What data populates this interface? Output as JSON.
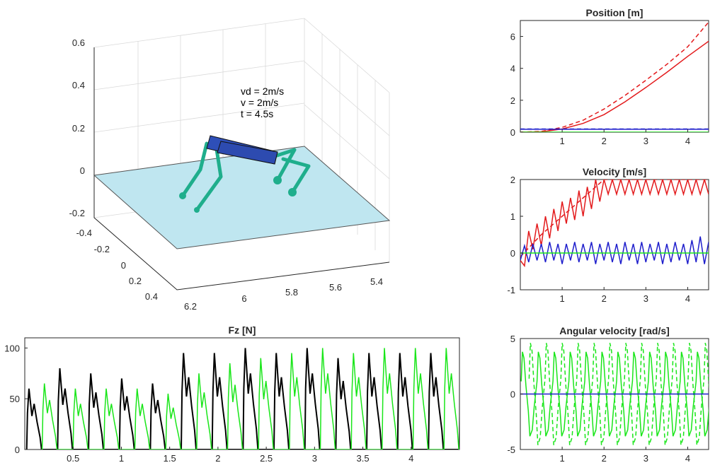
{
  "colors": {
    "red": "#e31a1c",
    "blue": "#1f1fcc",
    "green": "#19e619",
    "black": "#000000",
    "floor": "#bfe6f0",
    "body": "#2e4fb8",
    "legs": "#1fae8c"
  },
  "chart_data": [
    {
      "id": "scene3d",
      "type": "other",
      "title": "",
      "annotations": [
        "vd = 2m/s",
        "v = 2m/s",
        "t = 4.5s"
      ],
      "z_ticks": [
        "0.6",
        "0.4",
        "0.2",
        "0",
        "-0.2"
      ],
      "y_ticks": [
        "-0.4",
        "-0.2",
        "0",
        "0.2",
        "0.4"
      ],
      "x_ticks": [
        "6.2",
        "6",
        "5.8",
        "5.6",
        "5.4"
      ]
    },
    {
      "id": "position",
      "type": "line",
      "title": "Position [m]",
      "xlim": [
        0,
        4.5
      ],
      "ylim": [
        0,
        7
      ],
      "x_ticks": [
        "1",
        "2",
        "3",
        "4"
      ],
      "y_ticks": [
        "0",
        "2",
        "4",
        "6"
      ],
      "series": [
        {
          "style": "dashed",
          "color": "red",
          "x": [
            0,
            0.5,
            1,
            1.5,
            2,
            2.5,
            3,
            3.5,
            4,
            4.5
          ],
          "y": [
            0,
            0.05,
            0.3,
            0.75,
            1.45,
            2.3,
            3.25,
            4.25,
            5.35,
            6.9
          ]
        },
        {
          "style": "solid",
          "color": "red",
          "x": [
            0,
            0.5,
            1,
            1.5,
            2,
            2.5,
            3,
            3.5,
            4,
            4.5
          ],
          "y": [
            0,
            0.02,
            0.2,
            0.55,
            1.1,
            1.9,
            2.8,
            3.75,
            4.75,
            5.7
          ]
        },
        {
          "style": "solid",
          "color": "blue",
          "x": [
            0,
            4.5
          ],
          "y": [
            0.18,
            0.18
          ]
        },
        {
          "style": "dashed",
          "color": "blue",
          "x": [
            0,
            4.5
          ],
          "y": [
            0.2,
            0.2
          ]
        },
        {
          "style": "solid",
          "color": "green",
          "x": [
            0,
            4.5
          ],
          "y": [
            0,
            0
          ]
        }
      ]
    },
    {
      "id": "velocity",
      "type": "line",
      "title": "Velocity [m/s]",
      "xlim": [
        0,
        4.5
      ],
      "ylim": [
        -1,
        2
      ],
      "x_ticks": [
        "1",
        "2",
        "3",
        "4"
      ],
      "y_ticks": [
        "-1",
        "0",
        "1",
        "2"
      ],
      "series": [
        {
          "style": "dashed",
          "color": "red",
          "x": [
            0,
            0.5,
            1,
            1.5,
            2,
            4.5
          ],
          "y": [
            -0.1,
            0.5,
            1.0,
            1.5,
            2.0,
            2.0
          ]
        },
        {
          "style": "solid",
          "color": "red",
          "x": [
            0,
            0.1,
            0.2,
            0.3,
            0.4,
            0.5,
            0.6,
            0.7,
            0.8,
            0.9,
            1.0,
            1.1,
            1.2,
            1.3,
            1.4,
            1.5,
            1.6,
            1.7,
            1.8,
            1.9,
            2.0,
            2.1,
            2.2,
            2.3,
            2.4,
            2.5,
            2.6,
            2.7,
            2.8,
            2.9,
            3.0,
            3.1,
            3.2,
            3.3,
            3.4,
            3.5,
            3.6,
            3.7,
            3.8,
            3.9,
            4.0,
            4.1,
            4.2,
            4.3,
            4.4,
            4.5
          ],
          "y": [
            -0.2,
            -0.35,
            0.6,
            0.1,
            0.8,
            0.2,
            1.0,
            0.4,
            1.2,
            0.6,
            1.4,
            0.8,
            1.5,
            0.9,
            1.7,
            1.0,
            1.8,
            1.2,
            2.0,
            1.4,
            2.0,
            1.6,
            2.0,
            1.6,
            2.0,
            1.6,
            2.0,
            1.6,
            2.0,
            1.6,
            2.0,
            1.6,
            2.0,
            1.6,
            2.0,
            1.6,
            2.0,
            1.6,
            2.0,
            1.6,
            2.0,
            1.6,
            2.0,
            1.6,
            2.0,
            1.6
          ]
        },
        {
          "style": "solid",
          "color": "blue",
          "x": [
            0,
            0.1,
            0.2,
            0.3,
            0.4,
            0.5,
            0.6,
            0.7,
            0.8,
            0.9,
            1.0,
            1.1,
            1.2,
            1.3,
            1.4,
            1.5,
            1.6,
            1.7,
            1.8,
            1.9,
            2.0,
            2.1,
            2.2,
            2.3,
            2.4,
            2.5,
            2.6,
            2.7,
            2.8,
            2.9,
            3.0,
            3.1,
            3.2,
            3.3,
            3.4,
            3.5,
            3.6,
            3.7,
            3.8,
            3.9,
            4.0,
            4.1,
            4.2,
            4.3,
            4.4,
            4.5
          ],
          "y": [
            -0.2,
            0.2,
            -0.25,
            0.25,
            -0.2,
            0.25,
            -0.25,
            0.3,
            -0.2,
            0.25,
            -0.3,
            0.25,
            -0.2,
            0.3,
            -0.25,
            0.25,
            -0.2,
            0.3,
            -0.3,
            0.25,
            -0.2,
            0.3,
            -0.25,
            0.25,
            -0.3,
            0.3,
            -0.2,
            0.25,
            -0.3,
            0.3,
            -0.25,
            0.25,
            -0.2,
            0.3,
            -0.3,
            0.25,
            -0.25,
            0.3,
            -0.2,
            0.25,
            -0.3,
            0.35,
            -0.25,
            0.45,
            -0.3,
            0.3
          ]
        },
        {
          "style": "solid",
          "color": "green",
          "x": [
            0,
            4.5
          ],
          "y": [
            0,
            0
          ]
        }
      ]
    },
    {
      "id": "angular_velocity",
      "type": "line",
      "title": "Angular velocity [rad/s]",
      "xlim": [
        0,
        4.5
      ],
      "ylim": [
        -5,
        5
      ],
      "x_ticks": [
        "1",
        "2",
        "3",
        "4"
      ],
      "y_ticks": [
        "-5",
        "0",
        "5"
      ],
      "series": [
        {
          "style": "solid",
          "color": "green",
          "pattern": "square-oscillation",
          "period": 0.38,
          "amplitude": 3.8
        },
        {
          "style": "dashed",
          "color": "green",
          "pattern": "square-oscillation",
          "period": 0.38,
          "amplitude": 4.6
        },
        {
          "style": "solid",
          "color": "blue",
          "x": [
            0,
            4.5
          ],
          "y": [
            0,
            0
          ]
        }
      ]
    },
    {
      "id": "fz",
      "type": "line",
      "title": "Fz [N]",
      "xlim": [
        0,
        4.5
      ],
      "ylim": [
        0,
        110
      ],
      "x_ticks": [
        "0.5",
        "1",
        "1.5",
        "2",
        "2.5",
        "3",
        "3.5",
        "4"
      ],
      "y_ticks": [
        "0",
        "50",
        "100"
      ],
      "series": [
        {
          "style": "solid",
          "color": "black",
          "pattern": "force-pulses",
          "peaks": [
            60,
            80,
            75,
            70,
            65,
            95,
            95,
            100,
            95,
            100,
            90,
            95,
            95,
            95,
            110
          ]
        },
        {
          "style": "solid",
          "color": "green",
          "pattern": "force-pulses",
          "peaks": [
            65,
            60,
            60,
            60,
            55,
            75,
            85,
            90,
            95,
            100,
            95,
            100,
            100,
            100,
            100
          ]
        }
      ]
    }
  ]
}
